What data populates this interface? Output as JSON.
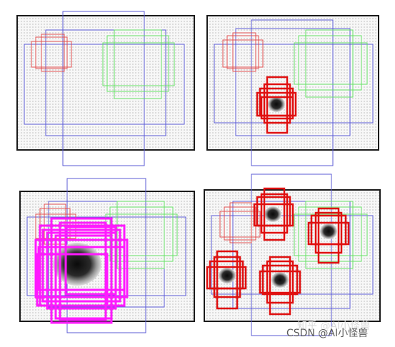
{
  "watermarks": {
    "zhihu": "知乎 @AI小怪兽",
    "csdn": "CSDN @AI小怪兽"
  },
  "colors": {
    "background": "#ffffff",
    "panel_fill": "#f7f7f7",
    "panel_border": "#1a1a1a",
    "dot_grid": "#9a9a9a",
    "anchor_blue": "#5b5bd6",
    "anchor_red": "#e05050",
    "anchor_green": "#66e066",
    "detection_red": "#e01010",
    "detection_magenta": "#ff1aff"
  },
  "panels": [
    {
      "id": "panel-top-left",
      "content": "anchor-template"
    },
    {
      "id": "panel-top-right",
      "content": "single-object-detections"
    },
    {
      "id": "panel-bottom-left",
      "content": "overlapping-detections"
    },
    {
      "id": "panel-bottom-right",
      "content": "four-object-detections"
    }
  ]
}
